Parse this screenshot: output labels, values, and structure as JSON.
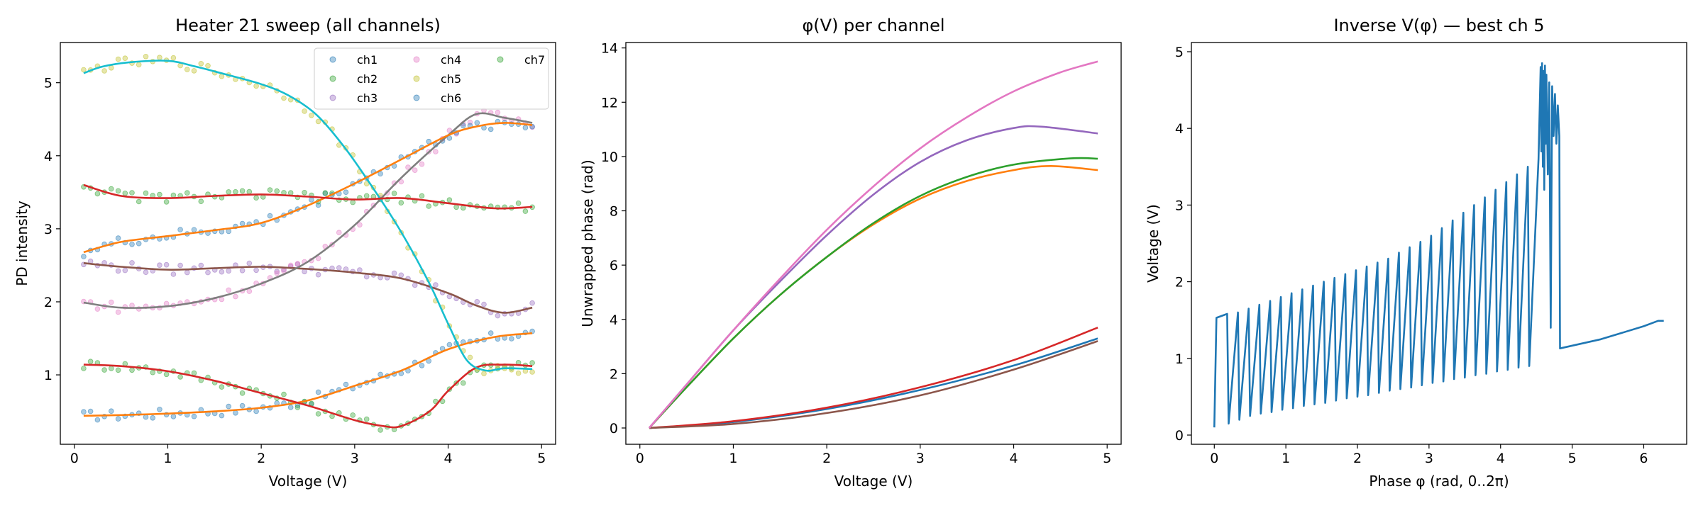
{
  "chart_data": [
    {
      "type": "scatter",
      "title": "Heater 21 sweep (all channels)",
      "xlabel": "Voltage (V)",
      "ylabel": "PD intensity",
      "xlim": [
        -0.15,
        5.15
      ],
      "ylim": [
        0.05,
        5.55
      ],
      "xticks": [
        0,
        1,
        2,
        3,
        4,
        5
      ],
      "yticks": [
        1,
        2,
        3,
        4,
        5
      ],
      "grid": false,
      "legend_position": "top-right",
      "legend": [
        "ch1",
        "ch2",
        "ch3",
        "ch4",
        "ch5",
        "ch6",
        "ch7"
      ],
      "series": [
        {
          "name": "ch1",
          "color": "#1f77b4",
          "fit_color": "#ff7f0e",
          "x": [
            0.1,
            0.5,
            1.0,
            1.5,
            2.0,
            2.5,
            3.0,
            3.5,
            4.0,
            4.5,
            4.9
          ],
          "y": [
            0.44,
            0.45,
            0.47,
            0.5,
            0.55,
            0.65,
            0.85,
            1.06,
            1.35,
            1.52,
            1.57
          ]
        },
        {
          "name": "ch2",
          "color": "#2ca02c",
          "fit_color": "#d62728",
          "x": [
            0.1,
            0.5,
            1.0,
            1.5,
            2.0,
            2.5,
            3.0,
            3.3,
            3.5,
            3.8,
            4.0,
            4.3,
            4.6,
            4.9
          ],
          "y": [
            1.14,
            1.12,
            1.05,
            0.92,
            0.75,
            0.58,
            0.38,
            0.3,
            0.3,
            0.5,
            0.78,
            1.1,
            1.14,
            1.12
          ]
        },
        {
          "name": "ch3",
          "color": "#9467bd",
          "fit_color": "#8c564b",
          "x": [
            0.1,
            0.5,
            1.0,
            1.5,
            2.0,
            2.5,
            3.0,
            3.5,
            4.0,
            4.3,
            4.6,
            4.9
          ],
          "y": [
            2.53,
            2.48,
            2.44,
            2.46,
            2.48,
            2.45,
            2.4,
            2.32,
            2.12,
            1.95,
            1.85,
            1.92
          ]
        },
        {
          "name": "ch4",
          "color": "#e377c2",
          "fit_color": "#7f7f7f",
          "x": [
            0.1,
            0.5,
            1.0,
            1.5,
            2.0,
            2.5,
            3.0,
            3.5,
            4.0,
            4.3,
            4.6,
            4.9
          ],
          "y": [
            1.99,
            1.92,
            1.94,
            2.05,
            2.25,
            2.55,
            3.05,
            3.7,
            4.28,
            4.57,
            4.52,
            4.45
          ]
        },
        {
          "name": "ch5",
          "color": "#bcbd22",
          "fit_color": "#17becf",
          "x": [
            0.1,
            0.3,
            0.6,
            1.0,
            1.3,
            1.6,
            2.0,
            2.3,
            2.6,
            2.9,
            3.2,
            3.5,
            3.8,
            4.0,
            4.2,
            4.4,
            4.6,
            4.9
          ],
          "y": [
            5.13,
            5.22,
            5.28,
            5.3,
            5.22,
            5.12,
            4.98,
            4.82,
            4.55,
            4.1,
            3.55,
            2.95,
            2.25,
            1.7,
            1.2,
            1.06,
            1.09,
            1.08
          ]
        },
        {
          "name": "ch6",
          "color": "#1f77b4",
          "fit_color": "#ff7f0e",
          "x": [
            0.1,
            0.5,
            1.0,
            1.5,
            2.0,
            2.5,
            3.0,
            3.5,
            4.0,
            4.3,
            4.6,
            4.9
          ],
          "y": [
            2.68,
            2.82,
            2.9,
            2.98,
            3.08,
            3.32,
            3.62,
            3.95,
            4.28,
            4.4,
            4.45,
            4.42
          ]
        },
        {
          "name": "ch7",
          "color": "#2ca02c",
          "fit_color": "#d62728",
          "x": [
            0.1,
            0.5,
            1.0,
            1.5,
            2.0,
            2.5,
            3.0,
            3.5,
            4.0,
            4.5,
            4.9
          ],
          "y": [
            3.6,
            3.45,
            3.42,
            3.45,
            3.47,
            3.44,
            3.4,
            3.42,
            3.35,
            3.28,
            3.3
          ]
        }
      ]
    },
    {
      "type": "line",
      "title": "φ(V) per channel",
      "xlabel": "Voltage (V)",
      "ylabel": "Unwrapped phase (rad)",
      "xlim": [
        -0.15,
        5.15
      ],
      "ylim": [
        -0.6,
        14.2
      ],
      "xticks": [
        0,
        1,
        2,
        3,
        4,
        5
      ],
      "yticks": [
        0,
        2,
        4,
        6,
        8,
        10,
        12,
        14
      ],
      "grid": false,
      "series": [
        {
          "color": "#1f77b4",
          "x": [
            0.1,
            1.0,
            2.0,
            3.0,
            4.0,
            4.9
          ],
          "y": [
            0.0,
            0.22,
            0.7,
            1.4,
            2.3,
            3.3
          ]
        },
        {
          "color": "#ff7f0e",
          "x": [
            0.1,
            0.5,
            1.0,
            1.5,
            2.0,
            2.5,
            3.0,
            3.5,
            4.0,
            4.4,
            4.9
          ],
          "y": [
            0.0,
            1.5,
            3.3,
            4.9,
            6.3,
            7.5,
            8.45,
            9.1,
            9.5,
            9.65,
            9.5
          ]
        },
        {
          "color": "#2ca02c",
          "x": [
            0.1,
            0.5,
            1.0,
            1.5,
            2.0,
            2.5,
            3.0,
            3.5,
            4.0,
            4.6,
            4.9
          ],
          "y": [
            0.0,
            1.5,
            3.3,
            4.9,
            6.3,
            7.55,
            8.55,
            9.25,
            9.7,
            9.93,
            9.92
          ]
        },
        {
          "color": "#d62728",
          "x": [
            0.1,
            1.0,
            2.0,
            3.0,
            4.0,
            4.9
          ],
          "y": [
            0.0,
            0.25,
            0.75,
            1.5,
            2.5,
            3.7
          ]
        },
        {
          "color": "#9467bd",
          "x": [
            0.1,
            0.5,
            1.0,
            1.5,
            2.0,
            2.5,
            3.0,
            3.5,
            4.0,
            4.3,
            4.9
          ],
          "y": [
            0.0,
            1.6,
            3.6,
            5.4,
            7.1,
            8.6,
            9.8,
            10.6,
            11.05,
            11.1,
            10.85
          ]
        },
        {
          "color": "#8c564b",
          "x": [
            0.1,
            1.0,
            2.0,
            3.0,
            4.0,
            4.9
          ],
          "y": [
            0.0,
            0.15,
            0.55,
            1.2,
            2.15,
            3.2
          ]
        },
        {
          "color": "#e377c2",
          "x": [
            0.1,
            0.5,
            1.0,
            1.5,
            2.0,
            2.5,
            3.0,
            3.5,
            4.0,
            4.5,
            4.9
          ],
          "y": [
            0.0,
            1.6,
            3.6,
            5.5,
            7.3,
            8.9,
            10.3,
            11.45,
            12.4,
            13.1,
            13.5
          ]
        }
      ]
    },
    {
      "type": "line",
      "title": "Inverse V(φ) — best ch 5",
      "xlabel": "Phase φ (rad, 0..2π)",
      "ylabel": "Voltage (V)",
      "xlim": [
        -0.32,
        6.6
      ],
      "ylim": [
        -0.12,
        5.12
      ],
      "xticks": [
        0,
        1,
        2,
        3,
        4,
        5,
        6
      ],
      "yticks": [
        0,
        1,
        2,
        3,
        4,
        5
      ],
      "grid": false,
      "series": [
        {
          "color": "#1f77b4",
          "x": [
            0.0,
            0.03,
            0.18,
            0.2,
            0.33,
            0.35,
            0.48,
            0.5,
            0.63,
            0.65,
            0.78,
            0.8,
            0.93,
            0.95,
            1.08,
            1.1,
            1.23,
            1.25,
            1.38,
            1.4,
            1.53,
            1.55,
            1.68,
            1.7,
            1.83,
            1.85,
            1.98,
            2.0,
            2.13,
            2.15,
            2.28,
            2.3,
            2.43,
            2.45,
            2.58,
            2.6,
            2.73,
            2.75,
            2.88,
            2.9,
            3.03,
            3.05,
            3.18,
            3.2,
            3.33,
            3.35,
            3.48,
            3.5,
            3.63,
            3.65,
            3.78,
            3.8,
            3.93,
            3.95,
            4.08,
            4.1,
            4.23,
            4.25,
            4.38,
            4.4,
            4.53,
            4.56,
            4.57,
            4.58,
            4.59,
            4.6,
            4.61,
            4.62,
            4.63,
            4.64,
            4.66,
            4.68,
            4.7,
            4.72,
            4.74,
            4.76,
            4.78,
            4.8,
            4.82,
            4.83,
            5.4,
            6.0,
            6.2,
            6.28
          ],
          "y": [
            0.1,
            1.53,
            1.58,
            0.15,
            1.6,
            0.2,
            1.65,
            0.25,
            1.7,
            0.28,
            1.75,
            0.3,
            1.8,
            0.33,
            1.85,
            0.35,
            1.9,
            0.38,
            1.95,
            0.4,
            2.0,
            0.42,
            2.05,
            0.45,
            2.1,
            0.48,
            2.15,
            0.5,
            2.2,
            0.52,
            2.25,
            0.55,
            2.3,
            0.58,
            2.38,
            0.6,
            2.45,
            0.62,
            2.52,
            0.65,
            2.6,
            0.68,
            2.7,
            0.7,
            2.8,
            0.73,
            2.9,
            0.75,
            3.0,
            0.78,
            3.1,
            0.8,
            3.2,
            0.83,
            3.3,
            0.85,
            3.4,
            0.88,
            3.5,
            0.9,
            3.6,
            4.8,
            3.7,
            4.85,
            3.5,
            4.75,
            3.2,
            4.82,
            3.8,
            4.7,
            3.4,
            4.6,
            1.4,
            4.55,
            3.9,
            4.45,
            3.8,
            4.3,
            3.9,
            1.13,
            1.25,
            1.42,
            1.49,
            1.49
          ]
        }
      ]
    }
  ]
}
